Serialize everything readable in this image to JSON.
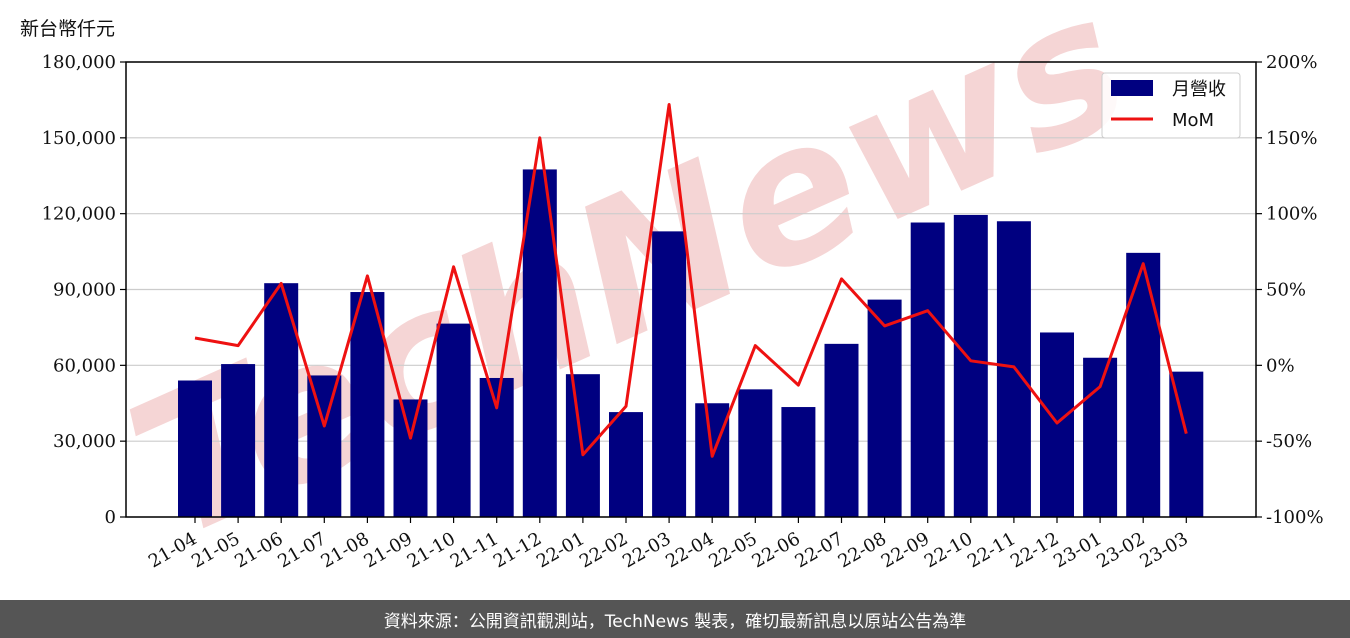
{
  "unit_label": "新台幣仟元",
  "watermark": "TechNews",
  "footer": "資料來源：公開資訊觀測站，TechNews 製表，確切最新訊息以原站公告為準",
  "colors": {
    "bar": "#000080",
    "line": "#ee1111",
    "grid": "#cccccc",
    "watermark": "#f5d5d5"
  },
  "chart_data": {
    "type": "bar",
    "categories": [
      "21-04",
      "21-05",
      "21-06",
      "21-07",
      "21-08",
      "21-09",
      "21-10",
      "21-11",
      "21-12",
      "22-01",
      "22-02",
      "22-03",
      "22-04",
      "22-05",
      "22-06",
      "22-07",
      "22-08",
      "22-09",
      "22-10",
      "22-11",
      "22-12",
      "23-01",
      "23-02",
      "23-03"
    ],
    "series": [
      {
        "name": "月營收",
        "type": "bar",
        "axis": "left",
        "values": [
          54000,
          60500,
          92500,
          56000,
          89000,
          46500,
          76500,
          55000,
          137500,
          56500,
          41500,
          113000,
          45000,
          50500,
          43500,
          68500,
          86000,
          116500,
          119500,
          117000,
          73000,
          63000,
          104500,
          57500
        ]
      },
      {
        "name": "MoM",
        "type": "line",
        "axis": "right",
        "values": [
          18,
          13,
          54,
          -40,
          59,
          -48,
          65,
          -28,
          150,
          -59,
          -27,
          172,
          -60,
          13,
          -13,
          57,
          26,
          36,
          3,
          -1,
          -38,
          -14,
          67,
          -45
        ]
      }
    ],
    "y_left": {
      "ylim": [
        0,
        180000
      ],
      "ticks": [
        0,
        30000,
        60000,
        90000,
        120000,
        150000,
        180000
      ],
      "tick_labels": [
        "0",
        "30,000",
        "60,000",
        "90,000",
        "120,000",
        "150,000",
        "180,000"
      ]
    },
    "y_right": {
      "ylim": [
        -100,
        200
      ],
      "ticks": [
        -100,
        -50,
        0,
        50,
        100,
        150,
        200
      ],
      "tick_labels": [
        "-100%",
        "-50%",
        "0%",
        "50%",
        "100%",
        "150%",
        "200%"
      ]
    },
    "grid": true,
    "legend_position": "top-right"
  }
}
